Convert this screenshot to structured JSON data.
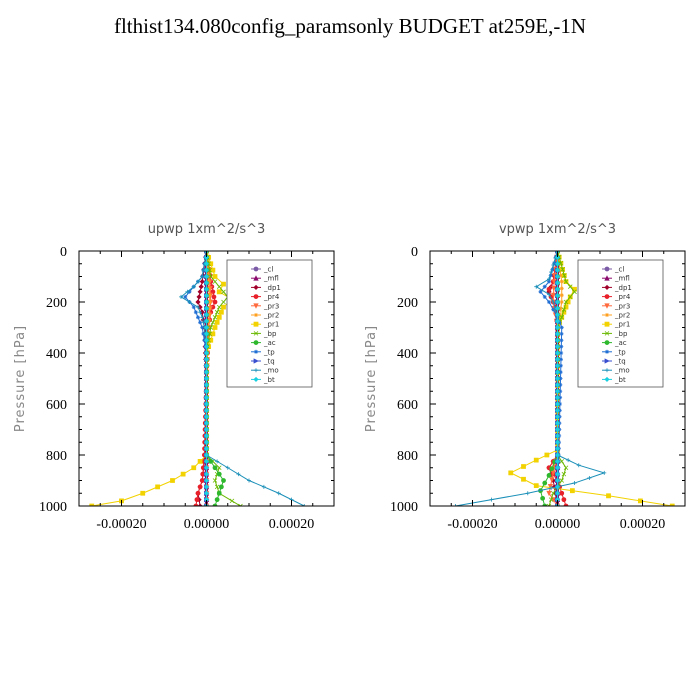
{
  "figure_title": "flthist134.080config_paramsonly  BUDGET at259E,-1N",
  "chart_data": [
    {
      "type": "line",
      "title": "upwp   1xm^2/s^3",
      "ylabel": "Pressure [hPa]",
      "xlim": [
        -0.0003,
        0.0003
      ],
      "ylim": [
        1000,
        0
      ],
      "xticks": [
        -0.0002,
        0.0,
        0.0002
      ],
      "xtick_labels": [
        "-0.00020",
        "0.00000",
        "0.00020"
      ],
      "yticks": [
        0,
        200,
        400,
        600,
        800,
        1000
      ],
      "ytick_labels": [
        "0",
        "200",
        "400",
        "600",
        "800",
        "1000"
      ],
      "legend_position": "upper-right",
      "series": [
        {
          "name": "_cl",
          "color": "#7b5aa6",
          "marker": "circle",
          "y": [
            0,
            200,
            400,
            600,
            800,
            1000
          ],
          "x": [
            0,
            0,
            0,
            0,
            0,
            0
          ]
        },
        {
          "name": "_mfl",
          "color": "#8b0a6c",
          "marker": "triangle",
          "y": [
            0,
            200,
            400,
            600,
            800,
            1000
          ],
          "x": [
            0,
            0,
            0,
            0,
            0,
            0
          ]
        },
        {
          "name": "_dp1",
          "color": "#a0002a",
          "marker": "diamond",
          "y": [
            0,
            120,
            160,
            200,
            240,
            300,
            500,
            800,
            900,
            950,
            1000
          ],
          "x": [
            0,
            -1e-05,
            -1.5e-05,
            -2e-05,
            -1e-05,
            -5e-06,
            0,
            -3e-06,
            -1e-05,
            -2e-05,
            -1.5e-05
          ]
        },
        {
          "name": "_pr4",
          "color": "#e8202a",
          "marker": "circle",
          "y": [
            0,
            120,
            160,
            200,
            240,
            300,
            500,
            800,
            900,
            950,
            1000
          ],
          "x": [
            0,
            1e-05,
            1.5e-05,
            2e-05,
            1e-05,
            5e-06,
            0,
            -5e-06,
            -1e-05,
            -2e-05,
            -2.5e-05
          ]
        },
        {
          "name": "_pr3",
          "color": "#ff6a3d",
          "marker": "triangle-down",
          "y": [
            0,
            120,
            200,
            300,
            500,
            800,
            1000
          ],
          "x": [
            0,
            8e-06,
            1e-05,
            5e-06,
            0,
            0,
            0
          ]
        },
        {
          "name": "_pr2",
          "color": "#ffa020",
          "marker": "star",
          "y": [
            0,
            120,
            200,
            300,
            500,
            800,
            1000
          ],
          "x": [
            0,
            5e-06,
            8e-06,
            4e-06,
            0,
            0,
            0
          ]
        },
        {
          "name": "_pr1",
          "color": "#f2d200",
          "marker": "square",
          "y": [
            0,
            100,
            130,
            160,
            190,
            220,
            260,
            300,
            400,
            800,
            850,
            900,
            950,
            980,
            1000
          ],
          "x": [
            0,
            2e-05,
            4e-05,
            3e-05,
            6e-05,
            4e-05,
            3e-05,
            2e-05,
            0,
            0,
            -3e-05,
            -8e-05,
            -0.00015,
            -0.0002,
            -0.00027
          ]
        },
        {
          "name": "_bp",
          "color": "#6ab800",
          "marker": "x",
          "y": [
            0,
            100,
            140,
            180,
            220,
            260,
            300,
            400,
            800,
            850,
            900,
            950,
            980,
            1000
          ],
          "x": [
            0,
            1e-05,
            3e-05,
            5e-05,
            3e-05,
            2e-05,
            1e-05,
            0,
            0,
            3e-05,
            2e-05,
            3e-05,
            6e-05,
            8e-05
          ]
        },
        {
          "name": "_ac",
          "color": "#2eb82e",
          "marker": "circle",
          "y": [
            0,
            800,
            850,
            900,
            950,
            1000
          ],
          "x": [
            0,
            0,
            2e-05,
            4e-05,
            3e-05,
            2e-05
          ]
        },
        {
          "name": "_tp",
          "color": "#1f6ed4",
          "marker": "star",
          "y": [
            0,
            100,
            140,
            180,
            220,
            260,
            300,
            400,
            1000
          ],
          "x": [
            0,
            -1e-05,
            -3e-05,
            -5e-05,
            -3e-05,
            -2e-05,
            -1e-05,
            0,
            0
          ]
        },
        {
          "name": "_tq",
          "color": "#3a4fd0",
          "marker": "triangle-right",
          "y": [
            0,
            1000
          ],
          "x": [
            0,
            0
          ]
        },
        {
          "name": "_mo",
          "color": "#1a8fb8",
          "marker": "cross",
          "y": [
            0,
            100,
            140,
            180,
            220,
            260,
            300,
            400,
            800,
            850,
            900,
            950,
            1000
          ],
          "x": [
            0,
            -1e-05,
            -3e-05,
            -6e-05,
            -2e-05,
            -1e-05,
            -5e-06,
            0,
            0,
            5e-05,
            0.0001,
            0.00017,
            0.00023
          ]
        },
        {
          "name": "_bt",
          "color": "#19d0e0",
          "marker": "diamond",
          "y": [
            0,
            1000
          ],
          "x": [
            0,
            0
          ]
        }
      ]
    },
    {
      "type": "line",
      "title": "vpwp   1xm^2/s^3",
      "ylabel": "Pressure [hPa]",
      "xlim": [
        -0.0003,
        0.0003
      ],
      "ylim": [
        1000,
        0
      ],
      "xticks": [
        -0.0002,
        0.0,
        0.0002
      ],
      "xtick_labels": [
        "-0.00020",
        "0.00000",
        "0.00020"
      ],
      "yticks": [
        0,
        200,
        400,
        600,
        800,
        1000
      ],
      "ytick_labels": [
        "0",
        "200",
        "400",
        "600",
        "800",
        "1000"
      ],
      "legend_position": "upper-right",
      "series": [
        {
          "name": "_cl",
          "color": "#7b5aa6",
          "marker": "circle",
          "y": [
            0,
            200,
            400,
            600,
            800,
            1000
          ],
          "x": [
            0,
            0,
            0,
            0,
            0,
            0
          ]
        },
        {
          "name": "_mfl",
          "color": "#8b0a6c",
          "marker": "triangle",
          "y": [
            0,
            200,
            400,
            600,
            800,
            1000
          ],
          "x": [
            0,
            0,
            0,
            0,
            0,
            0
          ]
        },
        {
          "name": "_dp1",
          "color": "#a0002a",
          "marker": "diamond",
          "y": [
            0,
            120,
            160,
            200,
            260,
            800,
            850,
            900,
            1000
          ],
          "x": [
            0,
            -1e-05,
            -2e-05,
            -1e-05,
            0,
            0,
            -2e-05,
            -1e-05,
            0
          ]
        },
        {
          "name": "_pr4",
          "color": "#e8202a",
          "marker": "circle",
          "y": [
            0,
            120,
            150,
            180,
            220,
            300,
            800,
            850,
            900,
            950,
            1000
          ],
          "x": [
            0,
            -1e-05,
            -2e-05,
            -1.5e-05,
            -5e-06,
            0,
            0,
            -2e-05,
            0,
            1e-05,
            2e-05
          ]
        },
        {
          "name": "_pr3",
          "color": "#ff6a3d",
          "marker": "triangle-down",
          "y": [
            0,
            120,
            200,
            300,
            800,
            870,
            950,
            1000
          ],
          "x": [
            0,
            -8e-06,
            -1e-05,
            0,
            0,
            -1e-05,
            -2e-05,
            0
          ]
        },
        {
          "name": "_pr2",
          "color": "#ffa020",
          "marker": "star",
          "y": [
            0,
            120,
            200,
            300,
            1000
          ],
          "x": [
            0,
            1e-05,
            1e-05,
            0,
            0
          ]
        },
        {
          "name": "_pr1",
          "color": "#f2d200",
          "marker": "square",
          "y": [
            0,
            120,
            150,
            180,
            220,
            260,
            300,
            780,
            820,
            870,
            920,
            960,
            1000
          ],
          "x": [
            0,
            2e-05,
            4e-05,
            3e-05,
            2e-05,
            1e-05,
            0,
            0,
            -5e-05,
            -0.00011,
            -5e-05,
            0.00012,
            0.00027
          ]
        },
        {
          "name": "_bp",
          "color": "#6ab800",
          "marker": "x",
          "y": [
            0,
            120,
            160,
            200,
            260,
            300,
            800,
            850,
            900,
            950,
            1000
          ],
          "x": [
            0,
            2e-05,
            4e-05,
            2e-05,
            1e-05,
            0,
            0,
            2e-05,
            1e-05,
            -1e-05,
            -2e-05
          ]
        },
        {
          "name": "_ac",
          "color": "#2eb82e",
          "marker": "circle",
          "y": [
            0,
            800,
            880,
            940,
            1000
          ],
          "x": [
            0,
            0,
            -2e-05,
            -4e-05,
            -3e-05
          ]
        },
        {
          "name": "_tp",
          "color": "#1f6ed4",
          "marker": "star",
          "y": [
            0,
            120,
            160,
            200,
            260,
            300,
            1000
          ],
          "x": [
            0,
            -2e-05,
            -4e-05,
            -2e-05,
            0,
            1e-05,
            0
          ]
        },
        {
          "name": "_tq",
          "color": "#3a4fd0",
          "marker": "triangle-right",
          "y": [
            0,
            1000
          ],
          "x": [
            0,
            0
          ]
        },
        {
          "name": "_mo",
          "color": "#1a8fb8",
          "marker": "cross",
          "y": [
            0,
            110,
            140,
            170,
            200,
            260,
            300,
            800,
            840,
            870,
            910,
            950,
            1000
          ],
          "x": [
            0,
            -2e-05,
            -5e-05,
            -2e-05,
            -1e-05,
            0,
            0,
            0,
            5e-05,
            0.00011,
            4e-05,
            -7e-05,
            -0.00024
          ]
        },
        {
          "name": "_bt",
          "color": "#19d0e0",
          "marker": "diamond",
          "y": [
            0,
            1000
          ],
          "x": [
            0,
            0
          ]
        }
      ]
    }
  ]
}
